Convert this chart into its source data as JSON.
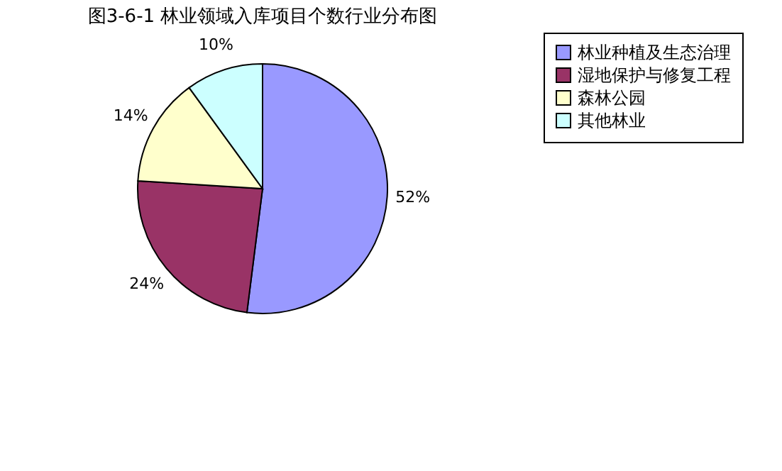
{
  "chart_data": {
    "type": "pie",
    "title": "图3-6-1 林业领域入库项目个数行业分布图",
    "categories": [
      "林业种植及生态治理",
      "湿地保护与修复工程",
      "森林公园",
      "其他林业"
    ],
    "values": [
      52,
      24,
      14,
      10
    ],
    "value_labels": [
      "52%",
      "24%",
      "14%",
      "10%"
    ],
    "colors": [
      "#9999ff",
      "#993366",
      "#ffffcc",
      "#ccffff"
    ],
    "legend": "right"
  }
}
